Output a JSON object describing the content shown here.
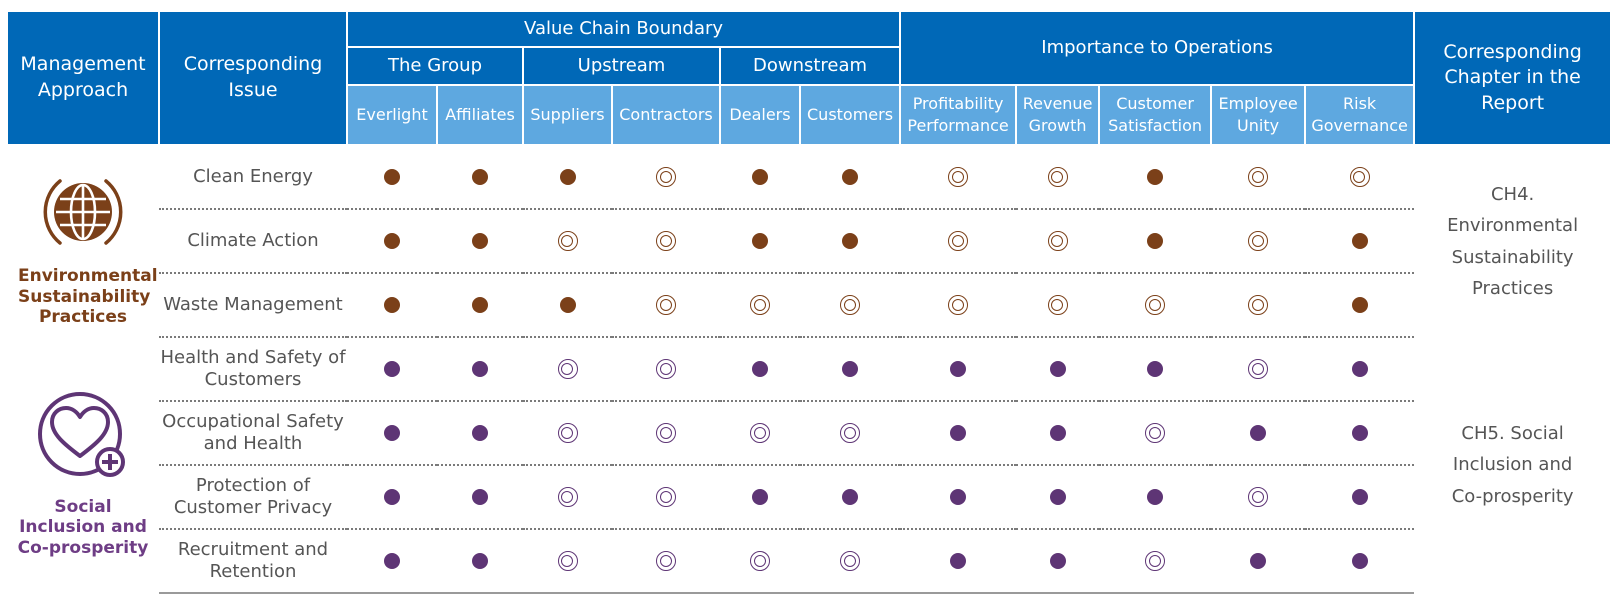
{
  "header": {
    "approach": "Management Approach",
    "issue": "Corresponding Issue",
    "chapter": "Corresponding Chapter in the Report",
    "value_chain": "Value Chain Boundary",
    "importance": "Importance to Operations",
    "groups": [
      "The Group",
      "Upstream",
      "Downstream"
    ],
    "columns": [
      "Everlight",
      "Affiliates",
      "Suppliers",
      "Contractors",
      "Dealers",
      "Customers",
      "Profitability Performance",
      "Revenue Growth",
      "Customer Satisfaction",
      "Employee Unity",
      "Risk Governance"
    ]
  },
  "colors": {
    "header_dark": "#0068b7",
    "header_light": "#5ea8e0",
    "environmental": "#7b4019",
    "social": "#5e3575"
  },
  "legend_symbols": {
    "filled": "filled-dot",
    "ring": "double-ring"
  },
  "sections": [
    {
      "approach": "Environmental Sustainability Practices",
      "icon": "globe-icon",
      "chapter": "CH4. Environmental Sustainability Practices",
      "rows": [
        {
          "issue": "Clean Energy",
          "marks": [
            "filled",
            "filled",
            "filled",
            "ring",
            "filled",
            "filled",
            "ring",
            "ring",
            "filled",
            "ring",
            "ring"
          ]
        },
        {
          "issue": "Climate Action",
          "marks": [
            "filled",
            "filled",
            "ring",
            "ring",
            "filled",
            "filled",
            "ring",
            "ring",
            "filled",
            "ring",
            "filled"
          ]
        },
        {
          "issue": "Waste Management",
          "marks": [
            "filled",
            "filled",
            "filled",
            "ring",
            "ring",
            "ring",
            "ring",
            "ring",
            "ring",
            "ring",
            "filled"
          ]
        }
      ]
    },
    {
      "approach": "Social Inclusion and Co-prosperity",
      "icon": "heart-plus-icon",
      "chapter": "CH5. Social Inclusion and Co-prosperity",
      "rows": [
        {
          "issue": "Health and Safety of Customers",
          "marks": [
            "filled",
            "filled",
            "ring",
            "ring",
            "filled",
            "filled",
            "filled",
            "filled",
            "filled",
            "ring",
            "filled"
          ]
        },
        {
          "issue": "Occupational Safety and Health",
          "marks": [
            "filled",
            "filled",
            "ring",
            "ring",
            "ring",
            "ring",
            "filled",
            "filled",
            "ring",
            "filled",
            "filled"
          ]
        },
        {
          "issue": "Protection of Customer Privacy",
          "marks": [
            "filled",
            "filled",
            "ring",
            "ring",
            "filled",
            "filled",
            "filled",
            "filled",
            "filled",
            "ring",
            "filled"
          ]
        },
        {
          "issue": "Recruitment and Retention",
          "marks": [
            "filled",
            "filled",
            "ring",
            "ring",
            "ring",
            "ring",
            "filled",
            "filled",
            "ring",
            "filled",
            "filled"
          ]
        }
      ]
    }
  ]
}
